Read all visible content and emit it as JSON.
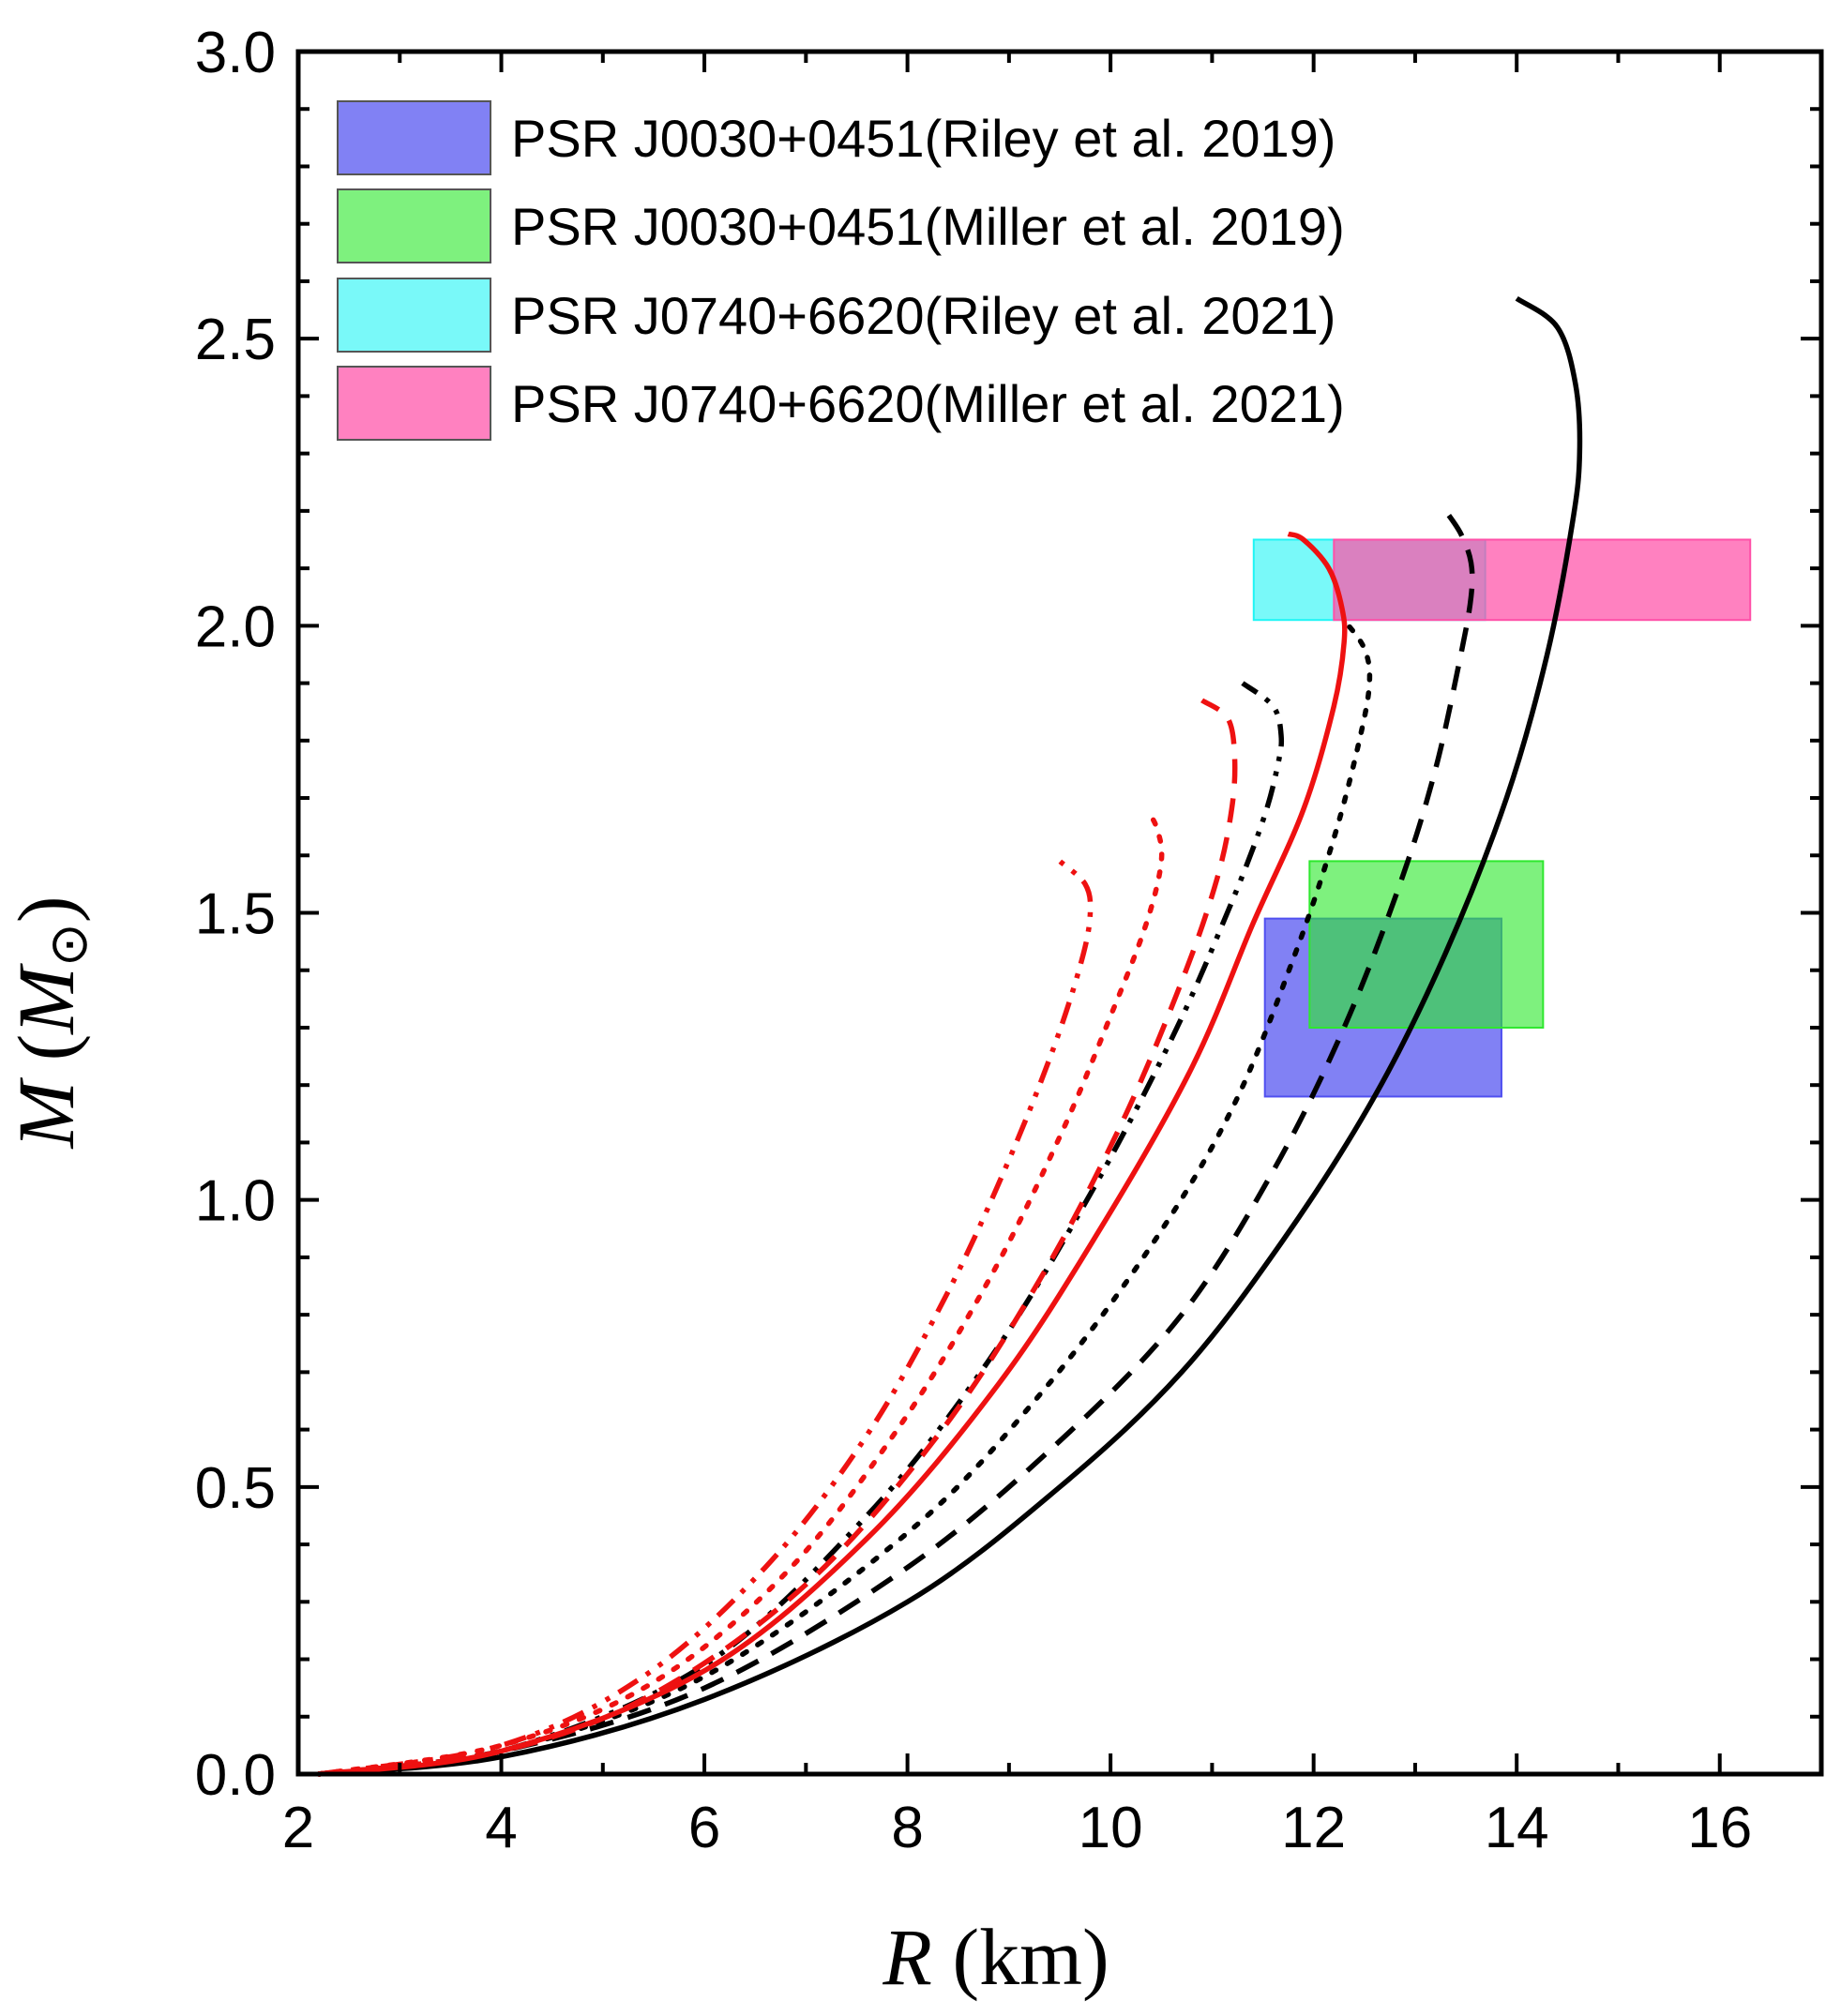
{
  "chart_data": {
    "type": "line",
    "title": "",
    "xlabel": {
      "symbol": "R",
      "unit": " (km)"
    },
    "ylabel": {
      "symbol": "M",
      "open": " (",
      "msym": "M",
      "sub": "⊙",
      "close": ")"
    },
    "xlim": [
      2,
      17
    ],
    "ylim": [
      0,
      3.0
    ],
    "xticks": [
      2,
      4,
      6,
      8,
      10,
      12,
      14,
      16
    ],
    "yticks": [
      0.0,
      0.5,
      1.0,
      1.5,
      2.0,
      2.5,
      3.0
    ],
    "xtick_labels": [
      "2",
      "4",
      "6",
      "8",
      "10",
      "12",
      "14",
      "16"
    ],
    "ytick_labels": [
      "0.0",
      "0.5",
      "1.0",
      "1.5",
      "2.0",
      "2.5",
      "3.0"
    ],
    "grid": false,
    "legend_position": "top-left",
    "regions": [
      {
        "name": "PSR J0030+0451(Riley et al. 2019)",
        "x": [
          11.52,
          13.85
        ],
        "y": [
          1.18,
          1.49
        ],
        "color": "#5050f0",
        "opacity": 0.72
      },
      {
        "name": "PSR J0030+0451(Miller et al. 2019)",
        "x": [
          11.96,
          14.26
        ],
        "y": [
          1.3,
          1.59
        ],
        "color": "#2ee82e",
        "opacity": 0.62
      },
      {
        "name": "PSR J0740+6620(Riley et al. 2021)",
        "x": [
          11.41,
          13.69
        ],
        "y": [
          2.01,
          2.15
        ],
        "color": "#20f5f5",
        "opacity": 0.6
      },
      {
        "name": "PSR J0740+6620(Miller et al. 2021)",
        "x": [
          12.2,
          16.3
        ],
        "y": [
          2.01,
          2.15
        ],
        "color": "#ff50a8",
        "opacity": 0.72
      }
    ],
    "series": [
      {
        "name": "black-solid",
        "color": "#000000",
        "dash": "solid",
        "x": [
          2.2,
          4.0,
          6.0,
          8.0,
          9.5,
          10.7,
          11.7,
          12.6,
          13.3,
          13.9,
          14.3,
          14.55,
          14.62,
          14.58,
          14.4,
          14.0
        ],
        "y": [
          0.0,
          0.03,
          0.13,
          0.3,
          0.5,
          0.7,
          0.93,
          1.18,
          1.43,
          1.7,
          1.95,
          2.18,
          2.3,
          2.42,
          2.52,
          2.57
        ]
      },
      {
        "name": "black-dash",
        "color": "#000000",
        "dash": "dash",
        "x": [
          2.2,
          4.0,
          6.0,
          8.0,
          9.5,
          10.7,
          11.6,
          12.3,
          12.85,
          13.2,
          13.45,
          13.55,
          13.55,
          13.45,
          13.3
        ],
        "y": [
          0.0,
          0.04,
          0.15,
          0.36,
          0.58,
          0.8,
          1.05,
          1.3,
          1.55,
          1.75,
          1.95,
          2.05,
          2.11,
          2.16,
          2.2
        ]
      },
      {
        "name": "black-dot",
        "color": "#000000",
        "dash": "dot",
        "x": [
          2.2,
          4.0,
          6.0,
          8.0,
          9.3,
          10.4,
          11.2,
          11.8,
          12.2,
          12.45,
          12.55,
          12.5,
          12.3
        ],
        "y": [
          0.0,
          0.04,
          0.17,
          0.42,
          0.66,
          0.92,
          1.16,
          1.42,
          1.63,
          1.8,
          1.9,
          1.96,
          2.01
        ]
      },
      {
        "name": "black-dashdotdot",
        "color": "#000000",
        "dash": "dashdotdot",
        "x": [
          2.2,
          4.0,
          6.0,
          7.6,
          8.8,
          9.8,
          10.6,
          11.15,
          11.5,
          11.65,
          11.68,
          11.6,
          11.3
        ],
        "y": [
          0.0,
          0.04,
          0.19,
          0.45,
          0.72,
          1.01,
          1.28,
          1.5,
          1.66,
          1.76,
          1.81,
          1.86,
          1.9
        ]
      },
      {
        "name": "red-solid",
        "color": "#ee1111",
        "dash": "solid",
        "x": [
          2.2,
          4.0,
          6.0,
          7.6,
          8.9,
          9.9,
          10.8,
          11.4,
          11.9,
          12.2,
          12.3,
          12.28,
          12.15,
          11.9,
          11.75
        ],
        "y": [
          0.0,
          0.04,
          0.18,
          0.41,
          0.68,
          0.95,
          1.23,
          1.48,
          1.68,
          1.86,
          1.97,
          2.03,
          2.1,
          2.15,
          2.16
        ]
      },
      {
        "name": "red-dash",
        "color": "#ee1111",
        "dash": "dash",
        "x": [
          2.2,
          4.0,
          5.5,
          7.0,
          8.3,
          9.3,
          10.1,
          10.7,
          11.05,
          11.2,
          11.22,
          11.15,
          10.9
        ],
        "y": [
          0.0,
          0.04,
          0.14,
          0.33,
          0.59,
          0.86,
          1.13,
          1.38,
          1.56,
          1.69,
          1.78,
          1.84,
          1.87
        ]
      },
      {
        "name": "red-dot",
        "color": "#ee1111",
        "dash": "dot",
        "x": [
          2.2,
          4.0,
          5.5,
          6.8,
          7.9,
          8.8,
          9.5,
          10.0,
          10.35,
          10.5,
          10.45,
          10.35
        ],
        "y": [
          0.0,
          0.05,
          0.16,
          0.35,
          0.6,
          0.86,
          1.11,
          1.32,
          1.48,
          1.59,
          1.65,
          1.68
        ]
      },
      {
        "name": "red-dashdotdot",
        "color": "#ee1111",
        "dash": "dashdotdot",
        "x": [
          2.2,
          4.0,
          5.4,
          6.6,
          7.6,
          8.4,
          9.0,
          9.45,
          9.72,
          9.8,
          9.75,
          9.5
        ],
        "y": [
          0.0,
          0.05,
          0.17,
          0.36,
          0.59,
          0.84,
          1.07,
          1.27,
          1.42,
          1.5,
          1.55,
          1.59
        ]
      }
    ]
  }
}
